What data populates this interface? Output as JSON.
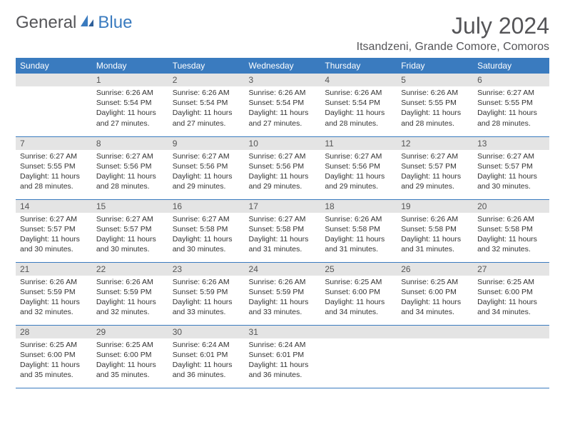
{
  "brand": {
    "part1": "General",
    "part2": "Blue"
  },
  "title": "July 2024",
  "location": "Itsandzeni, Grande Comore, Comoros",
  "colors": {
    "header_bg": "#3a7bbf",
    "header_text": "#ffffff",
    "daynum_bg": "#e4e4e4",
    "text": "#333333",
    "title_text": "#555558"
  },
  "weekdays": [
    "Sunday",
    "Monday",
    "Tuesday",
    "Wednesday",
    "Thursday",
    "Friday",
    "Saturday"
  ],
  "weeks": [
    [
      null,
      {
        "n": "1",
        "sr": "6:26 AM",
        "ss": "5:54 PM",
        "dl": "11 hours and 27 minutes."
      },
      {
        "n": "2",
        "sr": "6:26 AM",
        "ss": "5:54 PM",
        "dl": "11 hours and 27 minutes."
      },
      {
        "n": "3",
        "sr": "6:26 AM",
        "ss": "5:54 PM",
        "dl": "11 hours and 27 minutes."
      },
      {
        "n": "4",
        "sr": "6:26 AM",
        "ss": "5:54 PM",
        "dl": "11 hours and 28 minutes."
      },
      {
        "n": "5",
        "sr": "6:26 AM",
        "ss": "5:55 PM",
        "dl": "11 hours and 28 minutes."
      },
      {
        "n": "6",
        "sr": "6:27 AM",
        "ss": "5:55 PM",
        "dl": "11 hours and 28 minutes."
      }
    ],
    [
      {
        "n": "7",
        "sr": "6:27 AM",
        "ss": "5:55 PM",
        "dl": "11 hours and 28 minutes."
      },
      {
        "n": "8",
        "sr": "6:27 AM",
        "ss": "5:56 PM",
        "dl": "11 hours and 28 minutes."
      },
      {
        "n": "9",
        "sr": "6:27 AM",
        "ss": "5:56 PM",
        "dl": "11 hours and 29 minutes."
      },
      {
        "n": "10",
        "sr": "6:27 AM",
        "ss": "5:56 PM",
        "dl": "11 hours and 29 minutes."
      },
      {
        "n": "11",
        "sr": "6:27 AM",
        "ss": "5:56 PM",
        "dl": "11 hours and 29 minutes."
      },
      {
        "n": "12",
        "sr": "6:27 AM",
        "ss": "5:57 PM",
        "dl": "11 hours and 29 minutes."
      },
      {
        "n": "13",
        "sr": "6:27 AM",
        "ss": "5:57 PM",
        "dl": "11 hours and 30 minutes."
      }
    ],
    [
      {
        "n": "14",
        "sr": "6:27 AM",
        "ss": "5:57 PM",
        "dl": "11 hours and 30 minutes."
      },
      {
        "n": "15",
        "sr": "6:27 AM",
        "ss": "5:57 PM",
        "dl": "11 hours and 30 minutes."
      },
      {
        "n": "16",
        "sr": "6:27 AM",
        "ss": "5:58 PM",
        "dl": "11 hours and 30 minutes."
      },
      {
        "n": "17",
        "sr": "6:27 AM",
        "ss": "5:58 PM",
        "dl": "11 hours and 31 minutes."
      },
      {
        "n": "18",
        "sr": "6:26 AM",
        "ss": "5:58 PM",
        "dl": "11 hours and 31 minutes."
      },
      {
        "n": "19",
        "sr": "6:26 AM",
        "ss": "5:58 PM",
        "dl": "11 hours and 31 minutes."
      },
      {
        "n": "20",
        "sr": "6:26 AM",
        "ss": "5:58 PM",
        "dl": "11 hours and 32 minutes."
      }
    ],
    [
      {
        "n": "21",
        "sr": "6:26 AM",
        "ss": "5:59 PM",
        "dl": "11 hours and 32 minutes."
      },
      {
        "n": "22",
        "sr": "6:26 AM",
        "ss": "5:59 PM",
        "dl": "11 hours and 32 minutes."
      },
      {
        "n": "23",
        "sr": "6:26 AM",
        "ss": "5:59 PM",
        "dl": "11 hours and 33 minutes."
      },
      {
        "n": "24",
        "sr": "6:26 AM",
        "ss": "5:59 PM",
        "dl": "11 hours and 33 minutes."
      },
      {
        "n": "25",
        "sr": "6:25 AM",
        "ss": "6:00 PM",
        "dl": "11 hours and 34 minutes."
      },
      {
        "n": "26",
        "sr": "6:25 AM",
        "ss": "6:00 PM",
        "dl": "11 hours and 34 minutes."
      },
      {
        "n": "27",
        "sr": "6:25 AM",
        "ss": "6:00 PM",
        "dl": "11 hours and 34 minutes."
      }
    ],
    [
      {
        "n": "28",
        "sr": "6:25 AM",
        "ss": "6:00 PM",
        "dl": "11 hours and 35 minutes."
      },
      {
        "n": "29",
        "sr": "6:25 AM",
        "ss": "6:00 PM",
        "dl": "11 hours and 35 minutes."
      },
      {
        "n": "30",
        "sr": "6:24 AM",
        "ss": "6:01 PM",
        "dl": "11 hours and 36 minutes."
      },
      {
        "n": "31",
        "sr": "6:24 AM",
        "ss": "6:01 PM",
        "dl": "11 hours and 36 minutes."
      },
      null,
      null,
      null
    ]
  ],
  "labels": {
    "sunrise": "Sunrise: ",
    "sunset": "Sunset: ",
    "daylight": "Daylight: "
  }
}
